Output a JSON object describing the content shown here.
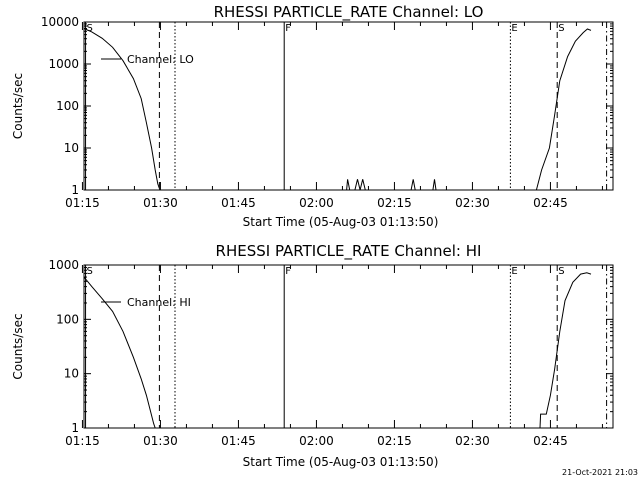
{
  "chart_data": [
    {
      "type": "line",
      "title": "RHESSI PARTICLE_RATE Channel: LO",
      "ylabel": "Counts/sec",
      "xlabel": "Start Time (05-Aug-03 01:13:50)",
      "yscale": "log",
      "xlim_min": [
        1.5,
        99.0
      ],
      "ylim": [
        1,
        10000
      ],
      "xticks": [
        {
          "t": 1.2,
          "label": "01:15"
        },
        {
          "t": 16.2,
          "label": "01:30"
        },
        {
          "t": 31.2,
          "label": "01:45"
        },
        {
          "t": 46.2,
          "label": "02:00"
        },
        {
          "t": 61.2,
          "label": "02:15"
        },
        {
          "t": 76.2,
          "label": "02:30"
        },
        {
          "t": 91.2,
          "label": "02:45"
        }
      ],
      "yticks": [
        {
          "v": 1,
          "label": "1"
        },
        {
          "v": 10,
          "label": "10"
        },
        {
          "v": 100,
          "label": "100"
        },
        {
          "v": 1000,
          "label": "1000"
        },
        {
          "v": 10000,
          "label": "10000"
        }
      ],
      "legend": "Channel: LO",
      "event_markers": [
        {
          "t": 1.8,
          "label": "S",
          "style": "solid"
        },
        {
          "t": 16.0,
          "label": "",
          "style": "dashed"
        },
        {
          "t": 19.0,
          "label": "",
          "style": "dotted"
        },
        {
          "t": 40.0,
          "label": "F",
          "style": "solid"
        },
        {
          "t": 83.5,
          "label": "E",
          "style": "dotted"
        },
        {
          "t": 92.5,
          "label": "S",
          "style": "dashed"
        },
        {
          "t": 102.0,
          "label": "",
          "style": "dashdot"
        }
      ],
      "series": [
        {
          "name": "Channel: LO",
          "segments": [
            {
              "t": [
                1.5,
                3,
                5,
                7,
                9,
                11,
                12.5,
                13.5,
                14.5,
                15.2,
                15.7,
                16.1
              ],
              "y": [
                7000,
                5800,
                4100,
                2500,
                1200,
                450,
                150,
                40,
                10,
                3,
                1.4,
                1
              ]
            },
            {
              "t": [
                52,
                52.2,
                52.6
              ],
              "y": [
                1,
                1.8,
                1
              ]
            },
            {
              "t": [
                53.6,
                54.1,
                54.6,
                55.1,
                55.6
              ],
              "y": [
                1,
                1.8,
                1,
                1.8,
                1
              ]
            },
            {
              "t": [
                64.4,
                64.8,
                65.2
              ],
              "y": [
                1,
                1.8,
                1
              ]
            },
            {
              "t": [
                68.6,
                68.9,
                69.2
              ],
              "y": [
                1,
                1.8,
                1
              ]
            },
            {
              "t": [
                88.5,
                89.5,
                91,
                92,
                93,
                94.5,
                96,
                97.5,
                98.3,
                99
              ],
              "y": [
                1,
                3,
                10,
                60,
                400,
                1500,
                3500,
                5600,
                6800,
                6300
              ]
            }
          ]
        }
      ]
    },
    {
      "type": "line",
      "title": "RHESSI PARTICLE_RATE Channel: HI",
      "ylabel": "Counts/sec",
      "xlabel": "Start Time (05-Aug-03 01:13:50)",
      "yscale": "log",
      "xlim_min": [
        1.5,
        99.0
      ],
      "ylim": [
        1,
        1000
      ],
      "xticks": [
        {
          "t": 1.2,
          "label": "01:15"
        },
        {
          "t": 16.2,
          "label": "01:30"
        },
        {
          "t": 31.2,
          "label": "01:45"
        },
        {
          "t": 46.2,
          "label": "02:00"
        },
        {
          "t": 61.2,
          "label": "02:15"
        },
        {
          "t": 76.2,
          "label": "02:30"
        },
        {
          "t": 91.2,
          "label": "02:45"
        }
      ],
      "yticks": [
        {
          "v": 1,
          "label": "1"
        },
        {
          "v": 10,
          "label": "10"
        },
        {
          "v": 100,
          "label": "100"
        },
        {
          "v": 1000,
          "label": "1000"
        }
      ],
      "legend": "Channel: HI",
      "event_markers": [
        {
          "t": 1.8,
          "label": "S",
          "style": "solid"
        },
        {
          "t": 16.0,
          "label": "",
          "style": "dashed"
        },
        {
          "t": 19.0,
          "label": "",
          "style": "dotted"
        },
        {
          "t": 40.0,
          "label": "F",
          "style": "solid"
        },
        {
          "t": 83.5,
          "label": "E",
          "style": "dotted"
        },
        {
          "t": 92.5,
          "label": "S",
          "style": "dashed"
        },
        {
          "t": 102.0,
          "label": "",
          "style": "dashdot"
        }
      ],
      "series": [
        {
          "name": "Channel: HI",
          "segments": [
            {
              "t": [
                1.5,
                3,
                5,
                7,
                9,
                11,
                12.5,
                13.5,
                14.3,
                14.9,
                15.2
              ],
              "y": [
                600,
                400,
                240,
                140,
                60,
                20,
                8,
                4,
                2,
                1.2,
                1
              ]
            },
            {
              "t": [
                89.2,
                89.3,
                90.4,
                91.2,
                92,
                93,
                94,
                95.5,
                97,
                98.2,
                99
              ],
              "y": [
                1,
                1.8,
                1.8,
                4,
                12,
                60,
                220,
                480,
                680,
                720,
                680
              ]
            }
          ]
        }
      ]
    }
  ],
  "timestamp": "21-Oct-2021 21:03"
}
